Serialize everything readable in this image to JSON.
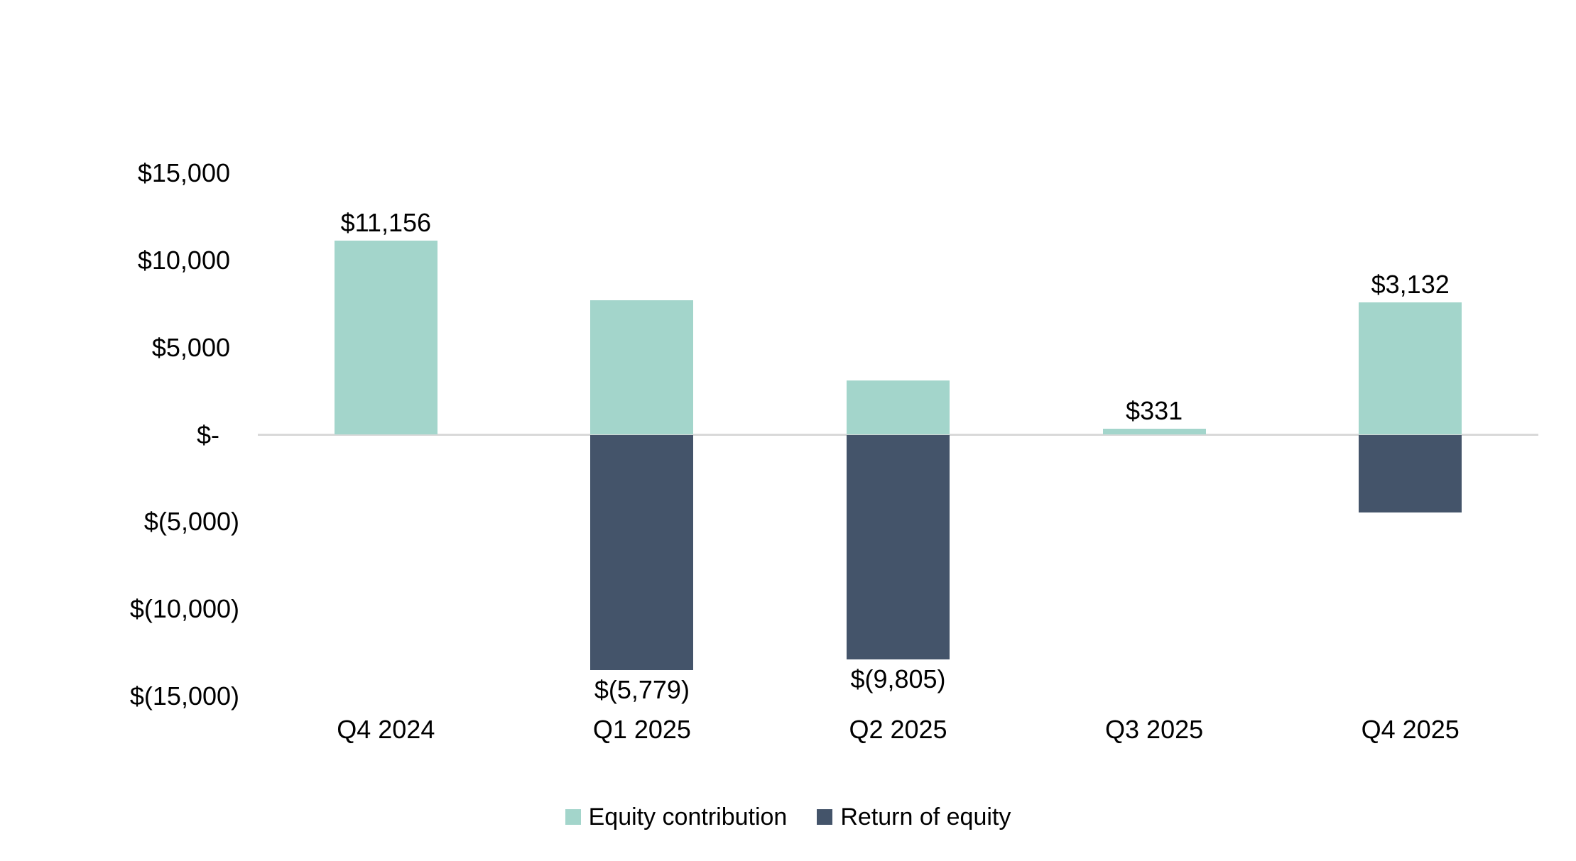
{
  "chart_data": {
    "type": "bar",
    "subtype": "stacked-column",
    "title": "",
    "categories": [
      "Q4 2024",
      "Q1 2025",
      "Q2 2025",
      "Q3 2025",
      "Q4 2025"
    ],
    "series": [
      {
        "name": "Equity contribution",
        "color": "#A3D5CB",
        "values": [
          11156,
          7700,
          3100,
          331,
          7600
        ]
      },
      {
        "name": "Return of equity",
        "color": "#44546A",
        "values": [
          0,
          -13479,
          -12905,
          0,
          -4468
        ]
      }
    ],
    "net_values": [
      11156,
      -5779,
      -9805,
      331,
      3132
    ],
    "data_labels": [
      "$11,156",
      "$(5,779)",
      "$(9,805)",
      "$331",
      "$3,132"
    ],
    "y_axis": {
      "min": -15000,
      "max": 15000,
      "format": "accounting-usd",
      "ticks": [
        {
          "label": "$15,000",
          "value": 15000
        },
        {
          "label": "$10,000",
          "value": 10000
        },
        {
          "label": "$5,000",
          "value": 5000
        },
        {
          "label": "$-",
          "value": 0
        },
        {
          "label": "$(5,000)",
          "value": -5000
        },
        {
          "label": "$(10,000)",
          "value": -10000
        },
        {
          "label": "$(15,000)",
          "value": -15000
        }
      ]
    },
    "legend": {
      "position": "bottom",
      "items": [
        "Equity contribution",
        "Return of equity"
      ]
    },
    "grid": false,
    "colors": {
      "axis_line": "#D9D9D9",
      "text": "#000000",
      "background": "#FFFFFF"
    }
  }
}
